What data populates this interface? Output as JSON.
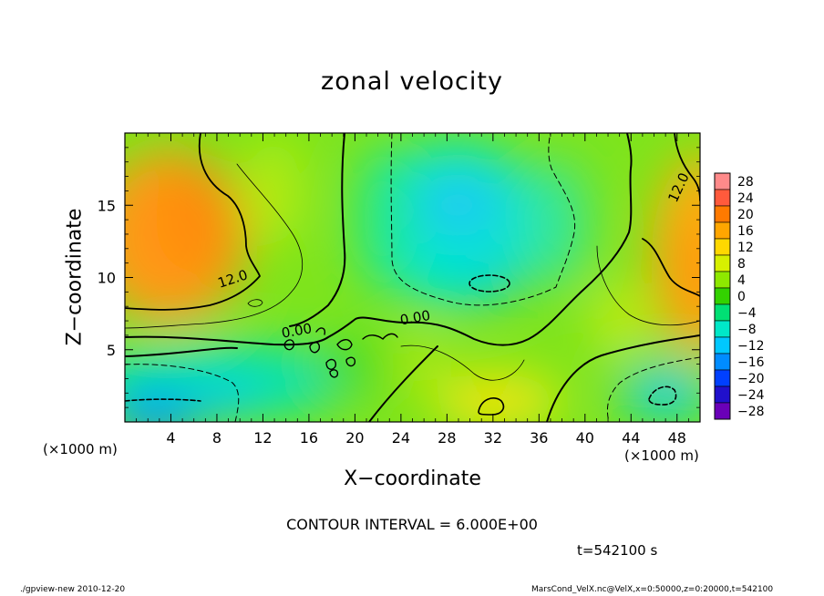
{
  "chart_data": {
    "type": "heatmap",
    "title": "zonal velocity",
    "xlabel": "X−coordinate",
    "ylabel": "Z−coordinate",
    "x_unit_label_left": "(×1000 m)",
    "x_unit_label_right": "(×1000 m)",
    "xlim": [
      0,
      50
    ],
    "ylim": [
      0,
      20
    ],
    "x_ticks": [
      4,
      8,
      12,
      16,
      20,
      24,
      28,
      32,
      36,
      40,
      44,
      48
    ],
    "y_ticks": [
      5,
      10,
      15
    ],
    "colorbar": {
      "levels": [
        28,
        24,
        20,
        16,
        12,
        8,
        4,
        0,
        -4,
        -8,
        -12,
        -16,
        -20,
        -24,
        -28
      ],
      "colors": [
        "#ff8a8a",
        "#ff5a3c",
        "#ff7a00",
        "#ffa600",
        "#ffd800",
        "#d7f000",
        "#8ee800",
        "#33d200",
        "#00e074",
        "#00e8c8",
        "#00c8ff",
        "#008cff",
        "#0040ff",
        "#2010cc",
        "#6a00b8"
      ]
    },
    "contour_labels": [
      {
        "text": "12.0",
        "x": 9.5,
        "y": 9.6
      },
      {
        "text": "12.0",
        "x": 48.5,
        "y": 16.1
      },
      {
        "text": "0.00",
        "x": 15.0,
        "y": 6.0
      },
      {
        "text": "0.00",
        "x": 25.3,
        "y": 6.9
      }
    ],
    "contour_interval": "CONTOUR INTERVAL = 6.000E+00",
    "time_label": "t=542100 s"
  },
  "footer": {
    "left": "./gpview-new  2010-12-20",
    "right": "MarsCond_VelX.nc@VelX,x=0:50000,z=0:20000,t=542100"
  }
}
